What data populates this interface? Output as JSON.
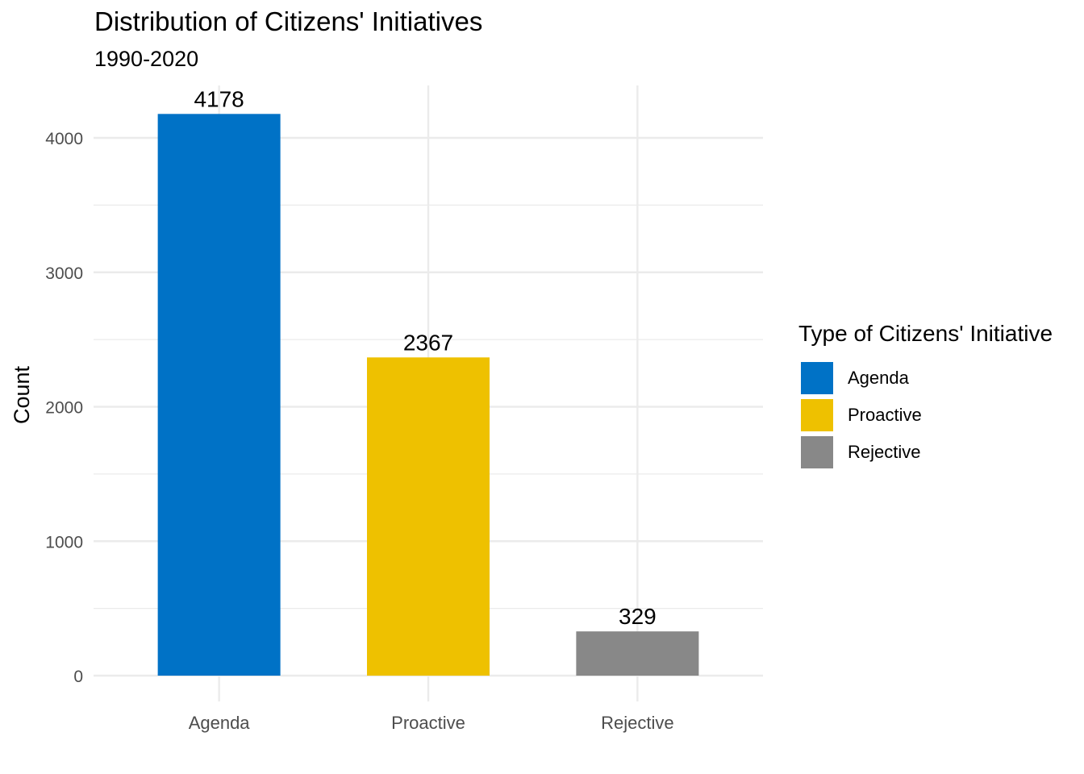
{
  "chart_data": {
    "type": "bar",
    "title": "Distribution of Citizens' Initiatives",
    "subtitle": "1990-2020",
    "xlabel": "",
    "ylabel": "Count",
    "categories": [
      "Agenda",
      "Proactive",
      "Rejective"
    ],
    "values": [
      4178,
      2367,
      329
    ],
    "data_labels": [
      "4178",
      "2367",
      "329"
    ],
    "colors": [
      "#0072C6",
      "#EEC100",
      "#888888"
    ],
    "ylim": [
      0,
      4178
    ],
    "yticks": [
      0,
      1000,
      2000,
      3000,
      4000
    ],
    "ytick_labels": [
      "0",
      "1000",
      "2000",
      "3000",
      "4000"
    ],
    "grid": true,
    "legend": {
      "title": "Type of Citizens' Initiative",
      "placement": "right",
      "entries": [
        "Agenda",
        "Proactive",
        "Rejective"
      ]
    }
  }
}
